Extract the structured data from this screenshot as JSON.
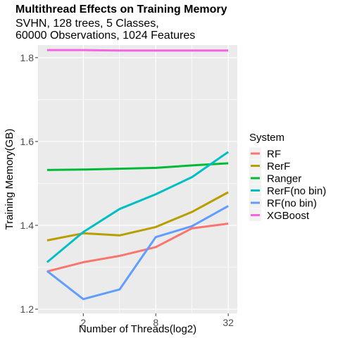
{
  "chart_data": {
    "type": "line",
    "title": "Multithread Effects on Training Memory",
    "subtitle_lines": [
      "SVHN, 128 trees, 5 Classes,",
      "60000 Observations, 1024 Features"
    ],
    "xlabel": "Number of Threads(log2)",
    "ylabel": "Training Memory(GB)",
    "x": [
      1,
      2,
      4,
      8,
      16,
      32
    ],
    "x_scale": "log2",
    "x_ticks": [
      2,
      8,
      32
    ],
    "x_tick_labels": [
      "2",
      "8",
      "32"
    ],
    "ylim": [
      1.19,
      1.83
    ],
    "y_ticks": [
      1.2,
      1.4,
      1.6,
      1.8
    ],
    "y_tick_labels": [
      "1.2",
      "1.4",
      "1.6",
      "1.8"
    ],
    "grid": true,
    "legend_title": "System",
    "legend_position": "right",
    "series": [
      {
        "name": "RF",
        "color": "#F8766D",
        "values": [
          1.29,
          1.312,
          1.327,
          1.348,
          1.393,
          1.404
        ]
      },
      {
        "name": "RerF",
        "color": "#B79F00",
        "values": [
          1.364,
          1.381,
          1.376,
          1.396,
          1.432,
          1.479
        ]
      },
      {
        "name": "Ranger",
        "color": "#00BA38",
        "values": [
          1.532,
          1.533,
          1.535,
          1.537,
          1.543,
          1.548
        ]
      },
      {
        "name": "RerF(no bin)",
        "color": "#00BFC4",
        "values": [
          1.312,
          1.384,
          1.439,
          1.474,
          1.515,
          1.575
        ]
      },
      {
        "name": "RF(no bin)",
        "color": "#619CFF",
        "values": [
          1.291,
          1.224,
          1.247,
          1.372,
          1.398,
          1.446
        ]
      },
      {
        "name": "XGBoost",
        "color": "#F564E3",
        "values": [
          1.818,
          1.818,
          1.817,
          1.817,
          1.817,
          1.817
        ]
      }
    ]
  }
}
